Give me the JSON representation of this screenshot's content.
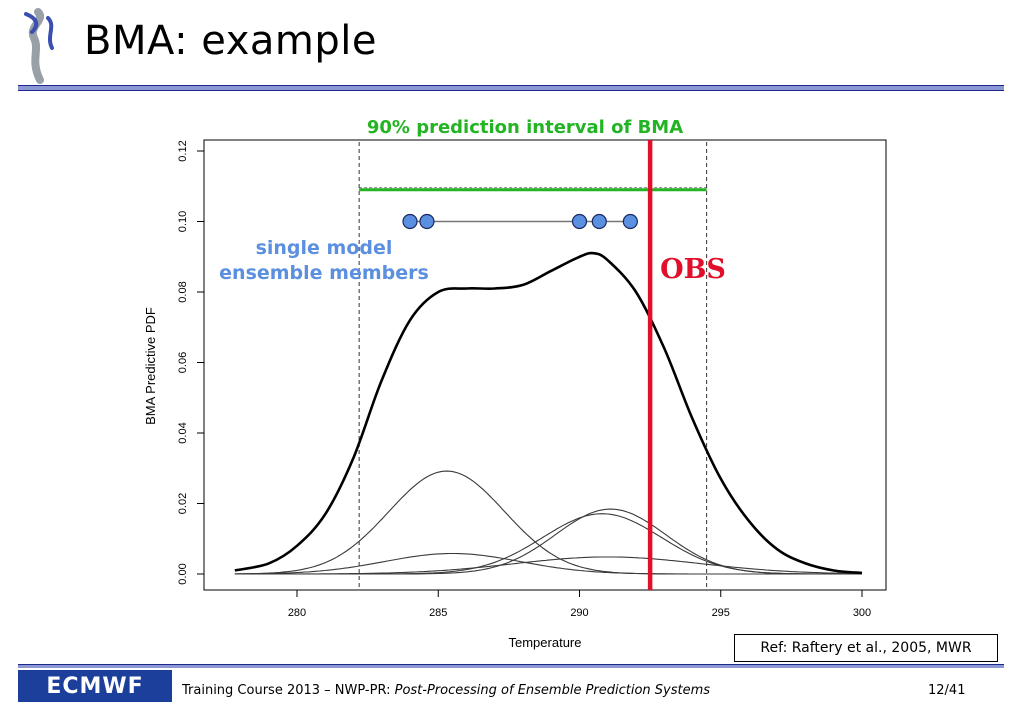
{
  "slide": {
    "title": "BMA: example",
    "reference": "Ref: Raftery et al., 2005, MWR",
    "footer_prefix": "Training Course 2013 – NWP-PR: ",
    "footer_italic": "Post-Processing of Ensemble Prediction Systems",
    "page": "12/41",
    "footer_logo_text": "ECMWF"
  },
  "colors": {
    "interval": "#22b422",
    "obs": "#e0102a",
    "members": "#5b8fe0",
    "rule": "#8c97d4",
    "logo_bg": "#1b3f9a"
  },
  "chart_data": {
    "type": "line",
    "xlabel": "Temperature",
    "ylabel": "BMA Predictive PDF",
    "xlim": [
      277.5,
      301
    ],
    "ylim": [
      0,
      0.12
    ],
    "x_ticks": [
      280,
      285,
      290,
      295,
      300
    ],
    "y_ticks": [
      0.0,
      0.02,
      0.04,
      0.06,
      0.08,
      0.1,
      0.12
    ],
    "y_tick_labels": [
      "0.00",
      "0.02",
      "0.04",
      "0.06",
      "0.08",
      "0.10",
      "0.12"
    ],
    "components": [
      {
        "weight": 0.15,
        "mean": 285.3,
        "sd": 2.05
      },
      {
        "weight": 0.035,
        "mean": 285.5,
        "sd": 2.4
      },
      {
        "weight": 0.09,
        "mean": 291.1,
        "sd": 1.95
      },
      {
        "weight": 0.09,
        "mean": 290.8,
        "sd": 2.1
      },
      {
        "weight": 0.04,
        "mean": 291.0,
        "sd": 3.3
      }
    ],
    "bma_pdf": {
      "x": [
        277.8,
        279,
        280,
        281,
        282,
        283,
        284,
        285,
        286,
        287,
        288,
        289,
        290,
        290.5,
        291,
        292,
        293,
        294,
        295,
        296,
        297,
        298,
        299,
        300
      ],
      "y": [
        0.001,
        0.003,
        0.008,
        0.017,
        0.033,
        0.055,
        0.072,
        0.08,
        0.081,
        0.081,
        0.082,
        0.086,
        0.09,
        0.091,
        0.089,
        0.08,
        0.064,
        0.044,
        0.027,
        0.015,
        0.007,
        0.003,
        0.001,
        0.0003
      ]
    },
    "interval": {
      "lower": 282.2,
      "upper": 294.5,
      "y": 0.109,
      "label": "90% prediction interval of BMA"
    },
    "obs": {
      "value": 292.5,
      "label": "OBS"
    },
    "ensemble_members": {
      "values": [
        284.0,
        284.6,
        290.0,
        290.7,
        291.8
      ],
      "y": 0.1
    },
    "members_label_line1": "single model",
    "members_label_line2": "ensemble members"
  }
}
